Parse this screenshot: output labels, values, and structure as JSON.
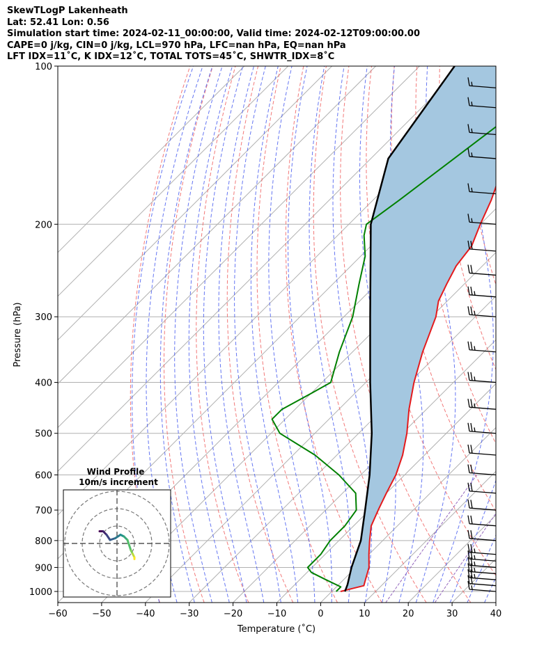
{
  "header": {
    "line1": "SkewTLogP Lakenheath",
    "line2": "Lat: 52.41   Lon: 0.56",
    "line3": "Simulation start time: 2024-02-11_00:00:00, Valid time: 2024-02-12T09:00:00.00",
    "line4": "CAPE=0 j/kg, CIN=0 j/kg, LCL=970 hPa, LFC=nan hPa, EQ=nan hPa",
    "line5": "LFT IDX=11˚C, K IDX=12˚C, TOTAL TOTS=45˚C, SHWTR_IDX=8˚C"
  },
  "chart_data": {
    "type": "line",
    "xlabel": "Temperature (˚C)",
    "ylabel": "Pressure (hPa)",
    "xlim": [
      -60,
      40
    ],
    "ylim": [
      1050,
      100
    ],
    "y_scale": "log",
    "skew": true,
    "x_ticks": [
      "−60",
      "−50",
      "−40",
      "−30",
      "−20",
      "−10",
      "0",
      "10",
      "20",
      "30",
      "40"
    ],
    "y_ticks": [
      "100",
      "200",
      "300",
      "400",
      "500",
      "600",
      "700",
      "800",
      "900",
      "1000"
    ],
    "grid": true,
    "series": [
      {
        "role": "temperature",
        "color": "#e41a1c",
        "points": [
          [
            2,
            1000
          ],
          [
            6,
            975
          ],
          [
            5,
            950
          ],
          [
            3,
            900
          ],
          [
            0,
            850
          ],
          [
            -3,
            800
          ],
          [
            -6,
            750
          ],
          [
            -8,
            700
          ],
          [
            -10,
            650
          ],
          [
            -12,
            600
          ],
          [
            -15,
            550
          ],
          [
            -19,
            500
          ],
          [
            -24,
            450
          ],
          [
            -29,
            400
          ],
          [
            -34,
            350
          ],
          [
            -39,
            300
          ],
          [
            -42,
            280
          ],
          [
            -44,
            260
          ],
          [
            -46,
            240
          ],
          [
            -47,
            220
          ],
          [
            -50,
            200
          ],
          [
            -53,
            180
          ],
          [
            -57,
            160
          ],
          [
            -60,
            140
          ],
          [
            -62,
            125
          ],
          [
            -66,
            110
          ],
          [
            -70,
            100
          ]
        ]
      },
      {
        "role": "dewpoint",
        "color": "#008000",
        "points": [
          [
            1,
            1000
          ],
          [
            1,
            980
          ],
          [
            -4,
            950
          ],
          [
            -9,
            920
          ],
          [
            -11,
            900
          ],
          [
            -11,
            850
          ],
          [
            -12,
            800
          ],
          [
            -12,
            750
          ],
          [
            -13,
            700
          ],
          [
            -17,
            650
          ],
          [
            -25,
            600
          ],
          [
            -35,
            550
          ],
          [
            -48,
            500
          ],
          [
            -53,
            470
          ],
          [
            -53,
            450
          ],
          [
            -50,
            420
          ],
          [
            -48,
            400
          ],
          [
            -53,
            350
          ],
          [
            -58,
            300
          ],
          [
            -64,
            260
          ],
          [
            -69,
            230
          ],
          [
            -74,
            210
          ],
          [
            -76,
            200
          ],
          [
            -74,
            180
          ],
          [
            -71,
            150
          ],
          [
            -68,
            125
          ],
          [
            -66,
            110
          ],
          [
            -66,
            100
          ]
        ]
      },
      {
        "role": "parcel",
        "color": "#000000",
        "points": [
          [
            3,
            1000
          ],
          [
            2,
            970
          ],
          [
            -1,
            900
          ],
          [
            -5,
            800
          ],
          [
            -11,
            700
          ],
          [
            -18,
            600
          ],
          [
            -27,
            500
          ],
          [
            -39,
            400
          ],
          [
            -54,
            300
          ],
          [
            -75,
            200
          ],
          [
            -86,
            150
          ],
          [
            -92,
            100
          ]
        ]
      }
    ],
    "wind_barbs": [
      {
        "p": 1000,
        "speed_kt": 15
      },
      {
        "p": 975,
        "speed_kt": 20
      },
      {
        "p": 950,
        "speed_kt": 25
      },
      {
        "p": 925,
        "speed_kt": 25
      },
      {
        "p": 900,
        "speed_kt": 25
      },
      {
        "p": 875,
        "speed_kt": 25
      },
      {
        "p": 850,
        "speed_kt": 25
      },
      {
        "p": 800,
        "speed_kt": 20
      },
      {
        "p": 750,
        "speed_kt": 20
      },
      {
        "p": 700,
        "speed_kt": 20
      },
      {
        "p": 650,
        "speed_kt": 20
      },
      {
        "p": 600,
        "speed_kt": 20
      },
      {
        "p": 550,
        "speed_kt": 20
      },
      {
        "p": 500,
        "speed_kt": 25
      },
      {
        "p": 450,
        "speed_kt": 25
      },
      {
        "p": 400,
        "speed_kt": 25
      },
      {
        "p": 350,
        "speed_kt": 25
      },
      {
        "p": 300,
        "speed_kt": 25
      },
      {
        "p": 275,
        "speed_kt": 25
      },
      {
        "p": 250,
        "speed_kt": 20
      },
      {
        "p": 225,
        "speed_kt": 20
      },
      {
        "p": 200,
        "speed_kt": 15
      },
      {
        "p": 175,
        "speed_kt": 15
      },
      {
        "p": 150,
        "speed_kt": 15
      },
      {
        "p": 135,
        "speed_kt": 15
      },
      {
        "p": 120,
        "speed_kt": 15
      },
      {
        "p": 110,
        "speed_kt": 15
      }
    ],
    "wind_profile": {
      "title": "Wind Profile",
      "subtitle": "10m/s increment",
      "rings_ms": [
        10,
        20,
        30
      ],
      "hodograph": [
        [
          -10,
          7
        ],
        [
          -8,
          7
        ],
        [
          -6,
          5
        ],
        [
          -4,
          2
        ],
        [
          -1,
          3
        ],
        [
          2,
          5
        ],
        [
          4,
          4
        ],
        [
          6,
          2
        ],
        [
          8,
          -4
        ],
        [
          9,
          -6
        ],
        [
          10,
          -8
        ],
        [
          10,
          -9
        ]
      ]
    },
    "colors": {
      "temperature": "#e41a1c",
      "dewpoint": "#008000",
      "parcel": "#000000",
      "fill": "#a4c7e0",
      "dry_adiabat": "#f06262",
      "moist_adiabat": "#4a5ef0",
      "isotherm_grid": "#b0b0b0",
      "mixing_ratio": "#9467bd"
    }
  }
}
